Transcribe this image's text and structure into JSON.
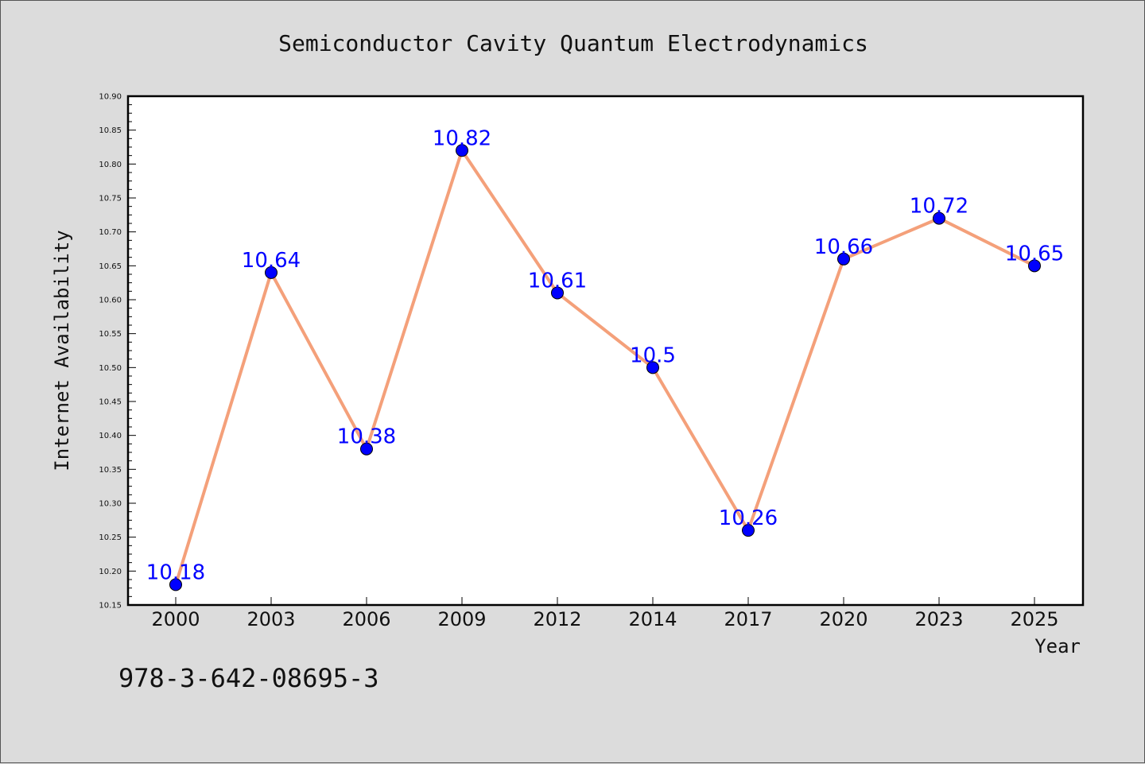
{
  "chart_data": {
    "type": "line",
    "title": "Semiconductor Cavity Quantum Electrodynamics",
    "xlabel": "Year",
    "ylabel": "Internet Availability",
    "categories": [
      "2000",
      "2003",
      "2006",
      "2009",
      "2012",
      "2014",
      "2017",
      "2020",
      "2023",
      "2025"
    ],
    "values": [
      10.18,
      10.64,
      10.38,
      10.82,
      10.61,
      10.5,
      10.26,
      10.66,
      10.72,
      10.65
    ],
    "data_labels": [
      "10.18",
      "10.64",
      "10.38",
      "10.82",
      "10.61",
      "10.5",
      "10.26",
      "10.66",
      "10.72",
      "10.65"
    ],
    "ylim": [
      10.15,
      10.9
    ],
    "yticks": [
      "10.15",
      "10.20",
      "10.25",
      "10.30",
      "10.35",
      "10.40",
      "10.45",
      "10.50",
      "10.55",
      "10.60",
      "10.65",
      "10.70",
      "10.75",
      "10.80",
      "10.85",
      "10.90"
    ],
    "grid": false,
    "colors": {
      "line": "#f4a07a",
      "marker": "#0000ff",
      "label": "#0000ff",
      "background": "#dcdcdc",
      "plot_area": "#ffffff"
    }
  },
  "annotation": "978-3-642-08695-3"
}
